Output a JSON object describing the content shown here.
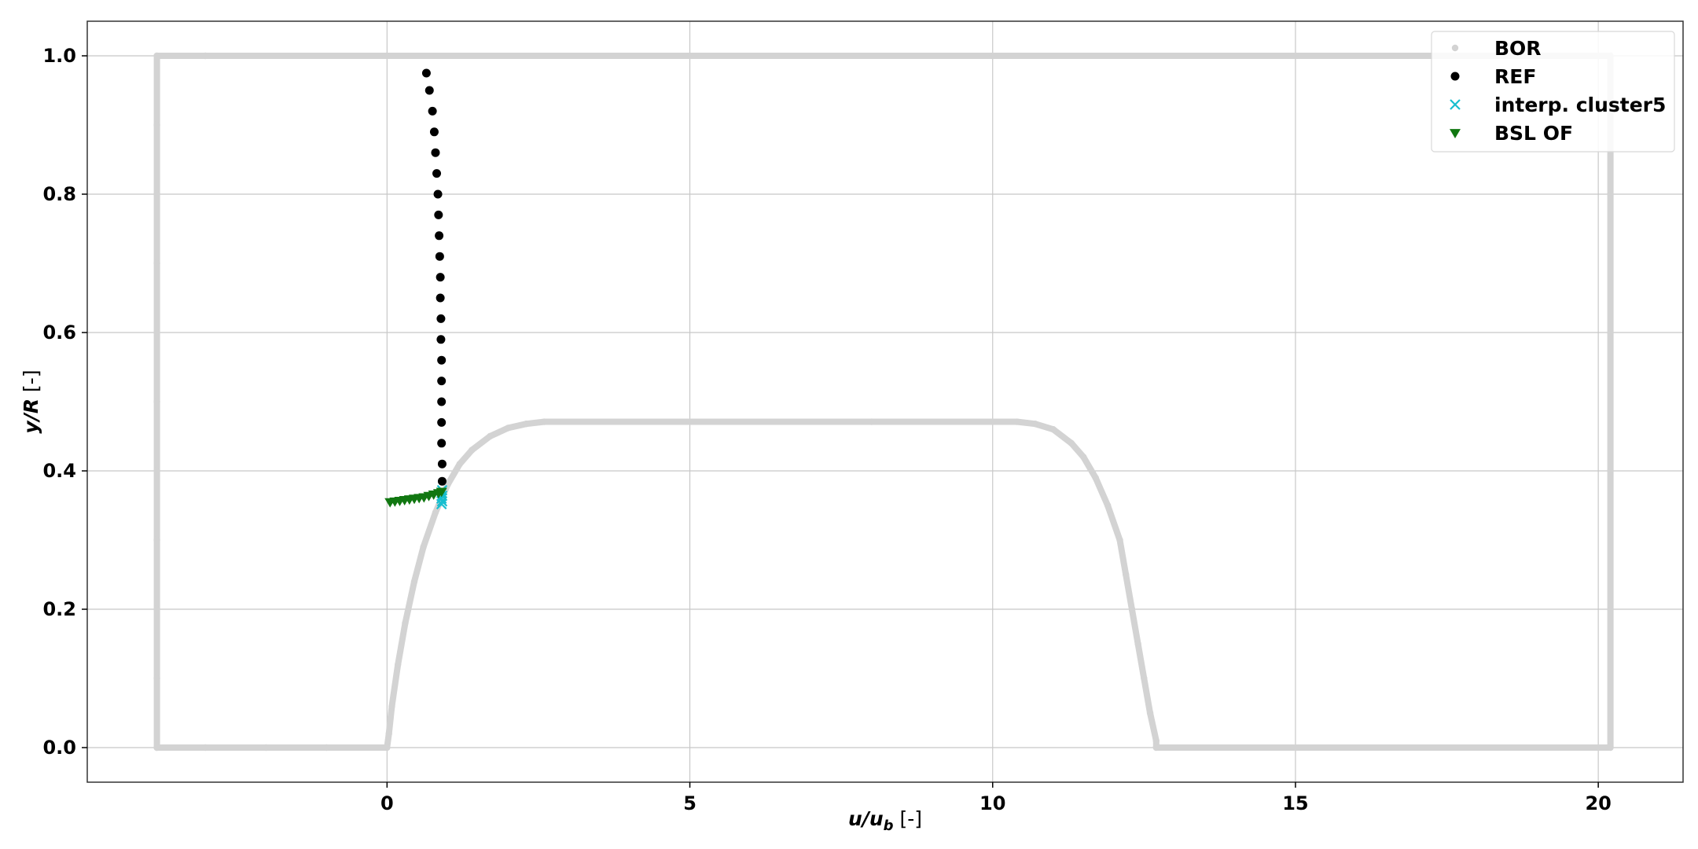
{
  "chart_data": {
    "type": "scatter",
    "title": "",
    "xlabel": {
      "var": "u/u",
      "sub": "b",
      "unit": " [-]"
    },
    "ylabel": {
      "var": "y/R",
      "unit": " [-]"
    },
    "xlim": [
      -4.95,
      21.4
    ],
    "ylim": [
      -0.05,
      1.05
    ],
    "xticks": [
      0,
      5,
      10,
      15,
      20
    ],
    "yticks": [
      0.0,
      0.2,
      0.4,
      0.6,
      0.8,
      1.0
    ],
    "xtick_labels": [
      "0",
      "5",
      "10",
      "15",
      "20"
    ],
    "ytick_labels": [
      "0.0",
      "0.2",
      "0.4",
      "0.6",
      "0.8",
      "1.0"
    ],
    "grid": true,
    "legend_position": "top-right",
    "series": [
      {
        "name": "BOR",
        "marker": "circle-small",
        "color": "#d3d3d3",
        "points": [
          [
            -3.8,
            0.0
          ],
          [
            -3.8,
            0.1
          ],
          [
            -3.8,
            0.2
          ],
          [
            -3.8,
            0.3
          ],
          [
            -3.8,
            0.4
          ],
          [
            -3.8,
            0.5
          ],
          [
            -3.8,
            0.6
          ],
          [
            -3.8,
            0.7
          ],
          [
            -3.8,
            0.8
          ],
          [
            -3.8,
            0.9
          ],
          [
            -3.8,
            1.0
          ],
          [
            -3.0,
            1.0
          ],
          [
            0.0,
            1.0
          ],
          [
            5.0,
            1.0
          ],
          [
            10.0,
            1.0
          ],
          [
            15.0,
            1.0
          ],
          [
            20.2,
            1.0
          ],
          [
            20.2,
            0.8
          ],
          [
            20.2,
            0.6
          ],
          [
            20.2,
            0.4
          ],
          [
            20.2,
            0.2
          ],
          [
            20.2,
            0.0
          ],
          [
            15.0,
            0.0
          ],
          [
            12.7,
            0.0
          ],
          [
            12.7,
            0.01
          ],
          [
            12.6,
            0.05
          ],
          [
            12.5,
            0.1
          ],
          [
            12.4,
            0.15
          ],
          [
            12.3,
            0.2
          ],
          [
            12.2,
            0.25
          ],
          [
            12.1,
            0.3
          ],
          [
            11.9,
            0.35
          ],
          [
            11.7,
            0.39
          ],
          [
            11.5,
            0.42
          ],
          [
            11.3,
            0.44
          ],
          [
            11.0,
            0.46
          ],
          [
            10.7,
            0.468
          ],
          [
            10.4,
            0.471
          ],
          [
            8.0,
            0.471
          ],
          [
            5.0,
            0.471
          ],
          [
            2.6,
            0.471
          ],
          [
            2.3,
            0.468
          ],
          [
            2.0,
            0.462
          ],
          [
            1.7,
            0.45
          ],
          [
            1.4,
            0.43
          ],
          [
            1.2,
            0.41
          ],
          [
            1.0,
            0.38
          ],
          [
            0.8,
            0.34
          ],
          [
            0.6,
            0.29
          ],
          [
            0.45,
            0.24
          ],
          [
            0.3,
            0.18
          ],
          [
            0.18,
            0.12
          ],
          [
            0.08,
            0.06
          ],
          [
            0.03,
            0.02
          ],
          [
            0.0,
            0.0
          ],
          [
            -1.0,
            0.0
          ],
          [
            -2.0,
            0.0
          ],
          [
            -3.0,
            0.0
          ],
          [
            -3.8,
            0.0
          ]
        ]
      },
      {
        "name": "REF",
        "marker": "circle",
        "color": "#000000",
        "points": [
          [
            0.65,
            0.975
          ],
          [
            0.7,
            0.95
          ],
          [
            0.75,
            0.92
          ],
          [
            0.78,
            0.89
          ],
          [
            0.8,
            0.86
          ],
          [
            0.82,
            0.83
          ],
          [
            0.84,
            0.8
          ],
          [
            0.85,
            0.77
          ],
          [
            0.86,
            0.74
          ],
          [
            0.87,
            0.71
          ],
          [
            0.88,
            0.68
          ],
          [
            0.88,
            0.65
          ],
          [
            0.89,
            0.62
          ],
          [
            0.89,
            0.59
          ],
          [
            0.9,
            0.56
          ],
          [
            0.9,
            0.53
          ],
          [
            0.9,
            0.5
          ],
          [
            0.9,
            0.47
          ],
          [
            0.9,
            0.44
          ],
          [
            0.91,
            0.41
          ],
          [
            0.91,
            0.385
          ]
        ]
      },
      {
        "name": "interp. cluster5",
        "marker": "x",
        "color": "#17becf",
        "points": [
          [
            0.9,
            0.352
          ],
          [
            0.91,
            0.356
          ],
          [
            0.9,
            0.36
          ],
          [
            0.91,
            0.364
          ],
          [
            0.9,
            0.368
          ],
          [
            0.91,
            0.372
          ]
        ]
      },
      {
        "name": "BSL OF",
        "marker": "triangle-down",
        "color": "#117711",
        "points": [
          [
            0.05,
            0.355
          ],
          [
            0.13,
            0.356
          ],
          [
            0.21,
            0.357
          ],
          [
            0.29,
            0.358
          ],
          [
            0.37,
            0.359
          ],
          [
            0.45,
            0.36
          ],
          [
            0.53,
            0.361
          ],
          [
            0.61,
            0.362
          ],
          [
            0.69,
            0.364
          ],
          [
            0.77,
            0.366
          ],
          [
            0.85,
            0.368
          ],
          [
            0.9,
            0.37
          ]
        ]
      }
    ]
  }
}
